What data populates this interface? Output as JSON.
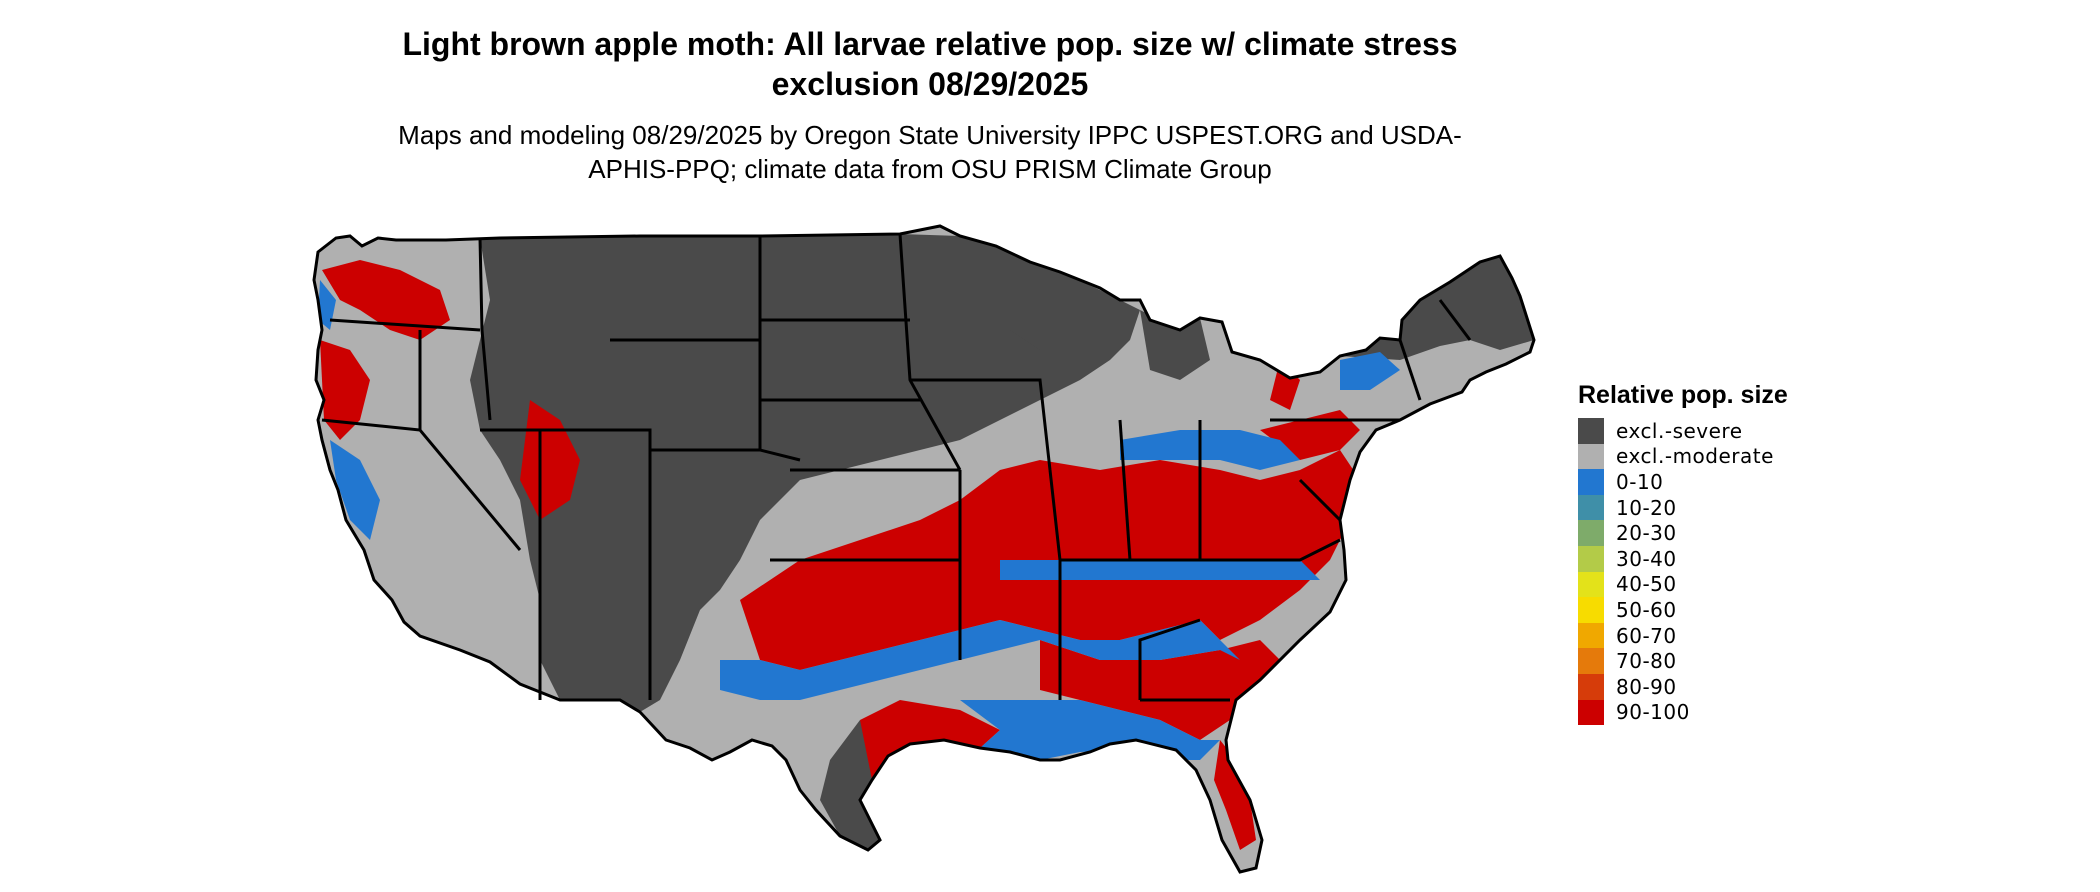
{
  "map": {
    "title": "Light brown apple moth: All larvae relative pop. size w/ climate stress exclusion 08/29/2025",
    "subtitle": "Maps and modeling 08/29/2025 by Oregon State University IPPC USPEST.ORG and USDA-APHIS-PPQ; climate data from OSU PRISM Climate Group",
    "colors": {
      "excl_severe": "#4a4a4a",
      "excl_moderate": "#b0b0b0",
      "low": "#2277d0",
      "high": "#cc0000",
      "border": "#000000"
    }
  },
  "legend": {
    "title": "Relative pop. size",
    "items": [
      {
        "label": "excl.-severe",
        "color": "#4a4a4a"
      },
      {
        "label": "excl.-moderate",
        "color": "#b0b0b0"
      },
      {
        "label": "0-10",
        "color": "#2277d0"
      },
      {
        "label": "10-20",
        "color": "#3f8fa8"
      },
      {
        "label": "20-30",
        "color": "#7eab6a"
      },
      {
        "label": "30-40",
        "color": "#b3cb48"
      },
      {
        "label": "40-50",
        "color": "#e3e21a"
      },
      {
        "label": "50-60",
        "color": "#f7dc00"
      },
      {
        "label": "60-70",
        "color": "#f0a800"
      },
      {
        "label": "70-80",
        "color": "#e57a0b"
      },
      {
        "label": "80-90",
        "color": "#d63c0a"
      },
      {
        "label": "90-100",
        "color": "#cc0000"
      }
    ]
  }
}
